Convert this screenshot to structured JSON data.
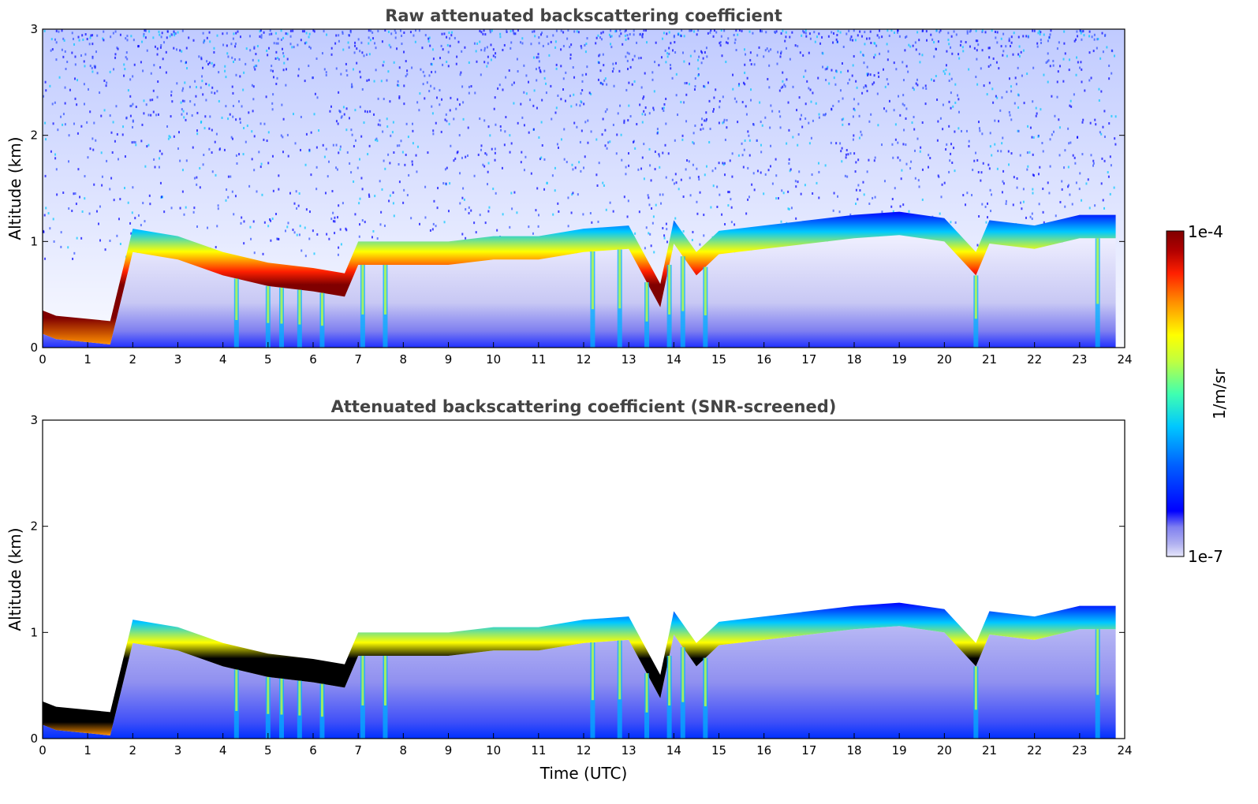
{
  "chart_data": [
    {
      "type": "heatmap",
      "title": "Raw attenuated backscattering coefficient",
      "xlabel": "",
      "ylabel": "Altitude (km)",
      "xlim": [
        0,
        24
      ],
      "ylim": [
        0,
        3
      ],
      "xticks": [
        "0",
        "1",
        "2",
        "3",
        "4",
        "5",
        "6",
        "7",
        "8",
        "9",
        "10",
        "11",
        "12",
        "13",
        "14",
        "15",
        "16",
        "17",
        "18",
        "19",
        "20",
        "21",
        "22",
        "23",
        "24"
      ],
      "yticks": [
        "0",
        "1",
        "2",
        "3"
      ],
      "cloud_layer_top_km": {
        "time": [
          0,
          0.3,
          1.5,
          2,
          3,
          4,
          5,
          6,
          6.7,
          7,
          8,
          9,
          10,
          11,
          12,
          13,
          13.7,
          14,
          14.5,
          15,
          16,
          17,
          18,
          19,
          20,
          20.7,
          21,
          22,
          23,
          23.8
        ],
        "altitude": [
          0.35,
          0.3,
          0.25,
          1.12,
          1.05,
          0.9,
          0.8,
          0.75,
          0.7,
          1.0,
          1.0,
          1.0,
          1.05,
          1.05,
          1.12,
          1.15,
          0.6,
          1.2,
          0.9,
          1.1,
          1.15,
          1.2,
          1.25,
          1.28,
          1.22,
          0.9,
          1.2,
          1.15,
          1.25,
          1.25
        ]
      }
    },
    {
      "type": "heatmap",
      "title": "Attenuated backscattering coefficient (SNR-screened)",
      "xlabel": "Time (UTC)",
      "ylabel": "Altitude (km)",
      "xlim": [
        0,
        24
      ],
      "ylim": [
        0,
        3
      ],
      "xticks": [
        "0",
        "1",
        "2",
        "3",
        "4",
        "5",
        "6",
        "7",
        "8",
        "9",
        "10",
        "11",
        "12",
        "13",
        "14",
        "15",
        "16",
        "17",
        "18",
        "19",
        "20",
        "21",
        "22",
        "23",
        "24"
      ],
      "yticks": [
        "0",
        "1",
        "2",
        "3"
      ]
    }
  ],
  "colorbar": {
    "label": "1/m/sr",
    "max_label": "1e-4",
    "min_label": "1e-7",
    "colors": [
      "#e6e6fa",
      "#b0b0f0",
      "#8080f0",
      "#0000ff",
      "#0060ff",
      "#00c8ff",
      "#40ffb0",
      "#c0ff40",
      "#ffff00",
      "#ff9000",
      "#ff2000",
      "#b00000",
      "#800000"
    ]
  }
}
